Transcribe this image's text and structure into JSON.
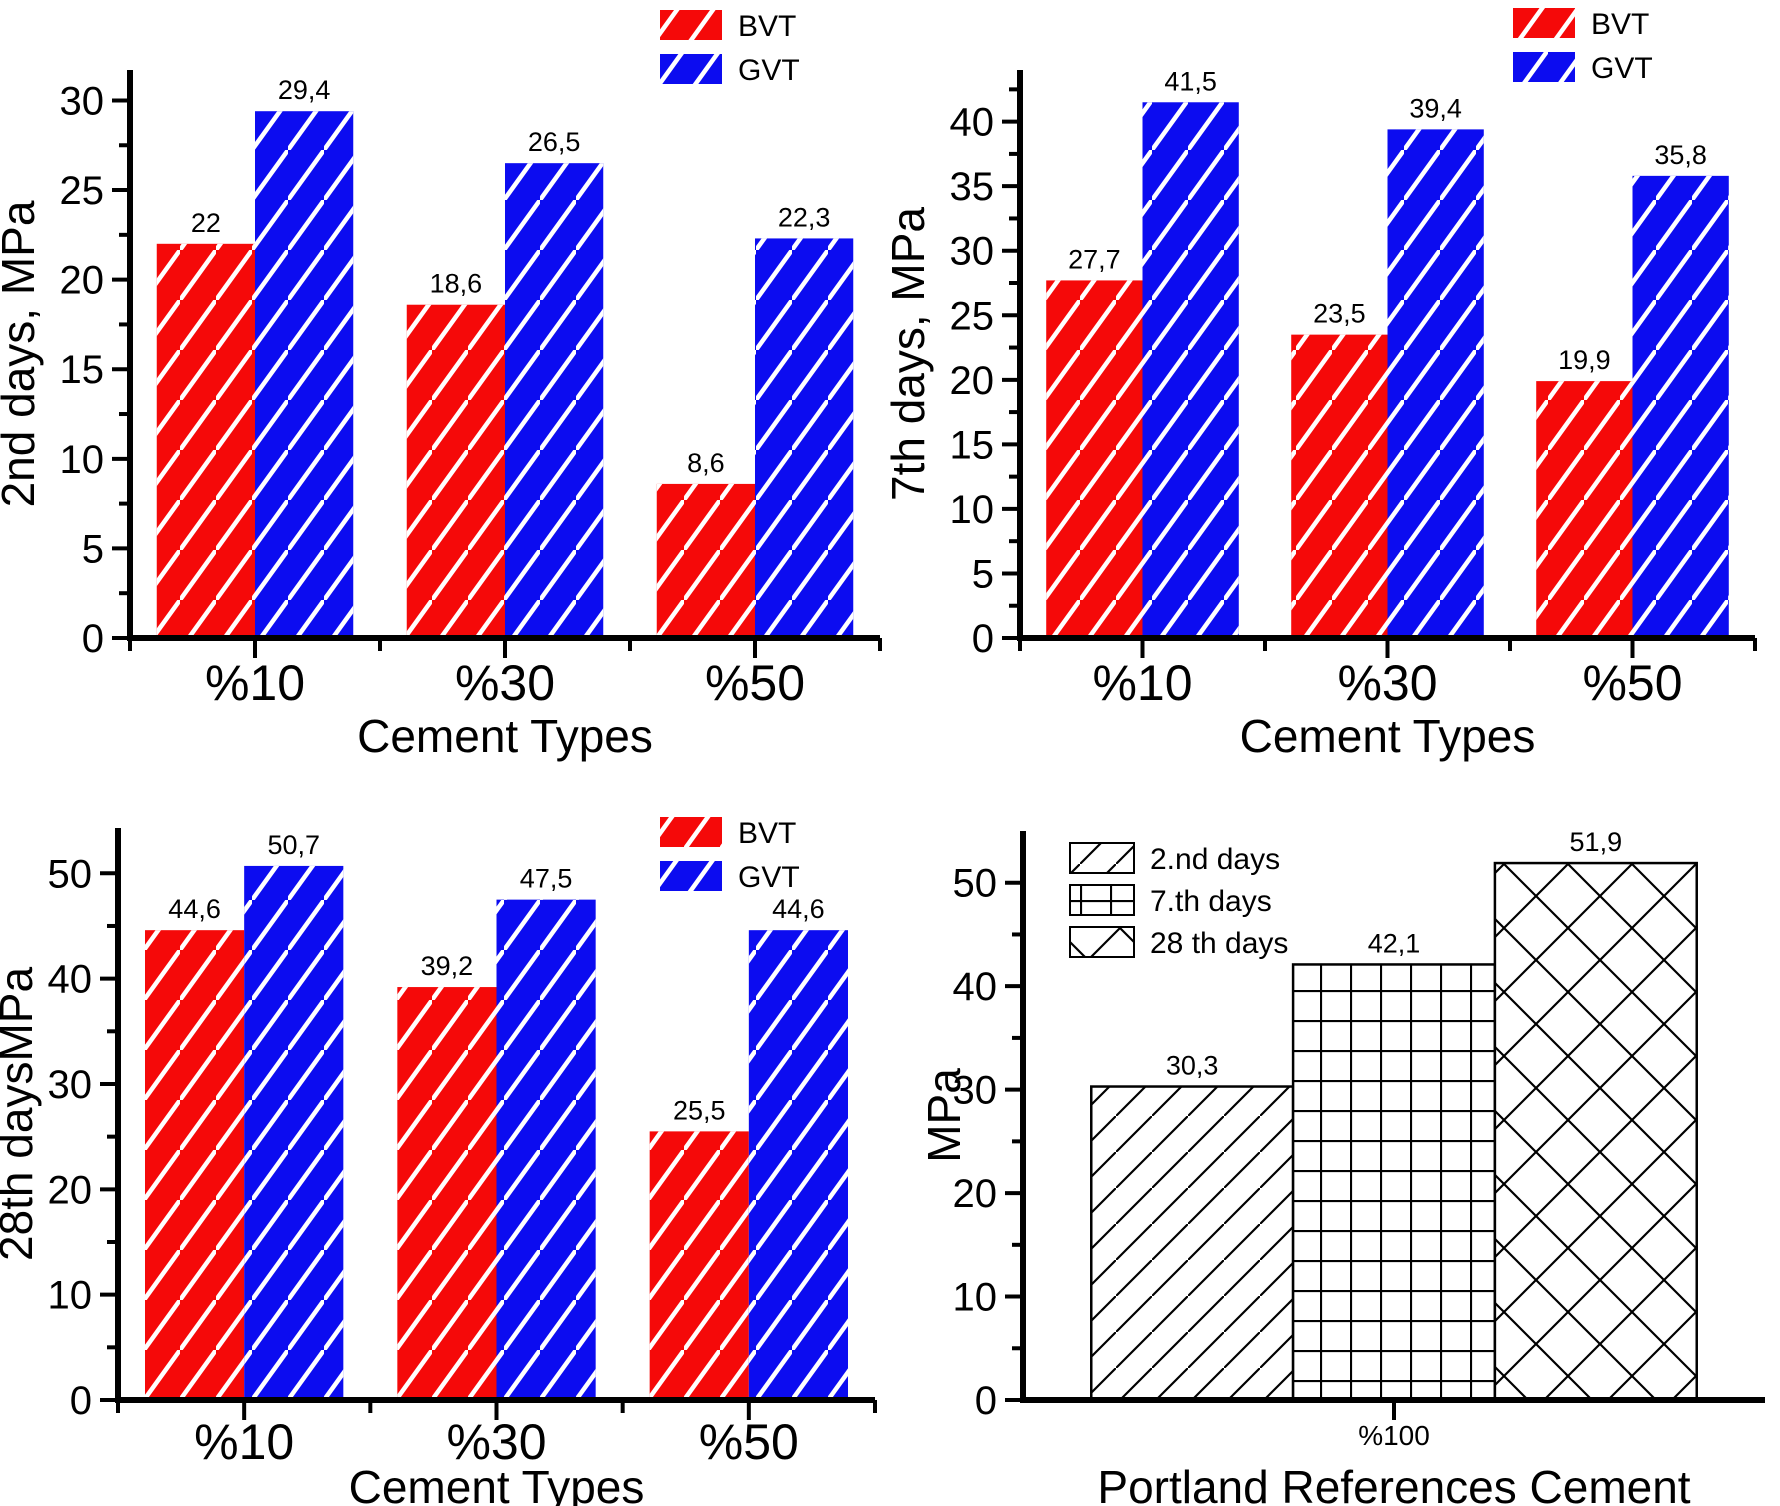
{
  "figure": {
    "background": "#ffffff",
    "axis_color": "#000000",
    "text_color": "#000000"
  },
  "chart_data": [
    {
      "type": "bar",
      "panel": "top-left",
      "ylabel": "2nd days, MPa",
      "xlabel": "Cement Types",
      "categories": [
        "%10",
        "%30",
        "%50"
      ],
      "series": [
        {
          "name": "BVT",
          "color": "#f50909",
          "hatch": "white-diagonal",
          "values": [
            22,
            18.6,
            8.6
          ],
          "value_labels": [
            "22",
            "18,6",
            "8,6"
          ]
        },
        {
          "name": "GVT",
          "color": "#0c0cf0",
          "hatch": "white-diagonal",
          "values": [
            29.4,
            26.5,
            22.3
          ],
          "value_labels": [
            "29,4",
            "26,5",
            "22,3"
          ]
        }
      ],
      "y_ticks": [
        0,
        5,
        10,
        15,
        20,
        25,
        30
      ],
      "y_minor_step": 2.5,
      "ylim": [
        0,
        31.7
      ],
      "grid": false,
      "legend": {
        "position": "top-right",
        "entries": [
          "BVT",
          "GVT"
        ]
      }
    },
    {
      "type": "bar",
      "panel": "top-right",
      "ylabel": "7th days, MPa",
      "xlabel": "Cement Types",
      "categories": [
        "%10",
        "%30",
        "%50"
      ],
      "series": [
        {
          "name": "BVT",
          "color": "#f50909",
          "hatch": "white-diagonal",
          "values": [
            27.7,
            23.5,
            19.9
          ],
          "value_labels": [
            "27,7",
            "23,5",
            "19,9"
          ]
        },
        {
          "name": "GVT",
          "color": "#0c0cf0",
          "hatch": "white-diagonal",
          "values": [
            41.5,
            39.4,
            35.8
          ],
          "value_labels": [
            "41,5",
            "39,4",
            "35,8"
          ]
        }
      ],
      "y_ticks": [
        0,
        5,
        10,
        15,
        20,
        25,
        30,
        35,
        40
      ],
      "y_minor_step": 2.5,
      "ylim": [
        0,
        44
      ],
      "grid": false,
      "legend": {
        "position": "top-right",
        "entries": [
          "BVT",
          "GVT"
        ]
      }
    },
    {
      "type": "bar",
      "panel": "bottom-left",
      "ylabel": "28th daysMPa",
      "xlabel": "Cement Types",
      "categories": [
        "%10",
        "%30",
        "%50"
      ],
      "series": [
        {
          "name": "BVT",
          "color": "#f50909",
          "hatch": "white-diagonal",
          "values": [
            44.6,
            39.2,
            25.5
          ],
          "value_labels": [
            "44,6",
            "39,2",
            "25,5"
          ]
        },
        {
          "name": "GVT",
          "color": "#0c0cf0",
          "hatch": "white-diagonal",
          "values": [
            50.7,
            47.5,
            44.6
          ],
          "value_labels": [
            "50,7",
            "47,5",
            "44,6"
          ]
        }
      ],
      "y_ticks": [
        0,
        10,
        20,
        30,
        40,
        50
      ],
      "y_minor_step": 5,
      "ylim": [
        0,
        54.3
      ],
      "grid": false,
      "legend": {
        "position": "top-right",
        "entries": [
          "BVT",
          "GVT"
        ]
      }
    },
    {
      "type": "bar",
      "panel": "bottom-right",
      "ylabel": "MPa",
      "xlabel": "Portland References Cement",
      "categories": [
        "%100"
      ],
      "series": [
        {
          "name": "2.nd days",
          "color": "#ffffff",
          "hatch": "black-diagonal",
          "values": [
            30.3
          ],
          "value_labels": [
            "30,3"
          ]
        },
        {
          "name": "7.th days",
          "color": "#ffffff",
          "hatch": "black-grid",
          "values": [
            42.1
          ],
          "value_labels": [
            "42,1"
          ]
        },
        {
          "name": "28 th days",
          "color": "#ffffff",
          "hatch": "black-cross",
          "values": [
            51.9
          ],
          "value_labels": [
            "51,9"
          ]
        }
      ],
      "y_ticks": [
        0,
        10,
        20,
        30,
        40,
        50
      ],
      "y_minor_step": 5,
      "ylim": [
        0,
        55
      ],
      "grid": false,
      "legend": {
        "position": "top-left",
        "entries": [
          "2.nd days",
          "7.th days",
          "28 th days"
        ]
      }
    }
  ]
}
